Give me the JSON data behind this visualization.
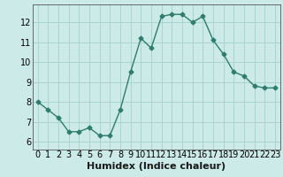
{
  "x": [
    0,
    1,
    2,
    3,
    4,
    5,
    6,
    7,
    8,
    9,
    10,
    11,
    12,
    13,
    14,
    15,
    16,
    17,
    18,
    19,
    20,
    21,
    22,
    23
  ],
  "y": [
    8.0,
    7.6,
    7.2,
    6.5,
    6.5,
    6.7,
    6.3,
    6.3,
    7.6,
    9.5,
    11.2,
    10.7,
    12.3,
    12.4,
    12.4,
    12.0,
    12.3,
    11.1,
    10.4,
    9.5,
    9.3,
    8.8,
    8.7,
    8.7
  ],
  "line_color": "#2e7d6e",
  "marker": "D",
  "marker_size": 2.5,
  "bg_color": "#cceae8",
  "grid_color": "#aad4d1",
  "xlabel": "Humidex (Indice chaleur)",
  "xlabel_fontsize": 8,
  "ytick_labels": [
    "6",
    "7",
    "8",
    "9",
    "10",
    "11",
    "12"
  ],
  "ytick_values": [
    6,
    7,
    8,
    9,
    10,
    11,
    12
  ],
  "ylim": [
    5.6,
    12.9
  ],
  "xlim": [
    -0.5,
    23.5
  ],
  "xtick_values": [
    0,
    1,
    2,
    3,
    4,
    5,
    6,
    7,
    8,
    9,
    10,
    11,
    12,
    13,
    14,
    15,
    16,
    17,
    18,
    19,
    20,
    21,
    22,
    23
  ],
  "tick_fontsize": 7,
  "line_width": 1.0
}
